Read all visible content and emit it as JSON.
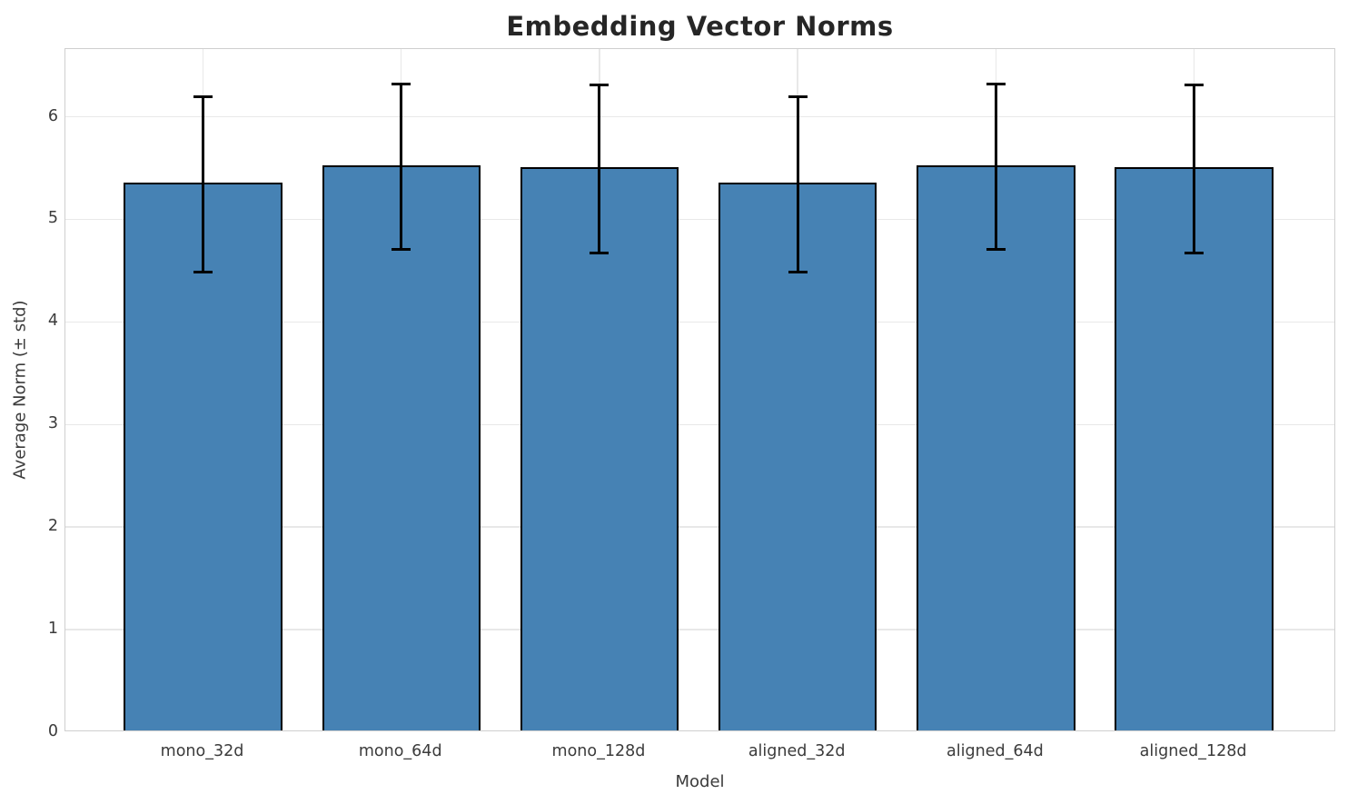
{
  "chart_data": {
    "type": "bar",
    "title": "Embedding Vector Norms",
    "xlabel": "Model",
    "ylabel": "Average Norm (± std)",
    "categories": [
      "mono_32d",
      "mono_64d",
      "mono_128d",
      "aligned_32d",
      "aligned_64d",
      "aligned_128d"
    ],
    "series": [
      {
        "name": "Average Norm",
        "values": [
          5.34,
          5.51,
          5.49,
          5.34,
          5.51,
          5.49
        ],
        "errors_std": [
          0.87,
          0.82,
          0.83,
          0.87,
          0.82,
          0.83
        ]
      }
    ],
    "yticks": [
      0,
      1,
      2,
      3,
      4,
      5,
      6
    ],
    "ylim": [
      0,
      6.66
    ],
    "grid": true,
    "legend": "none",
    "colors": {
      "bar_fill": "#4682b4",
      "bar_edge": "#000000",
      "error_bar": "#000000",
      "gridline": "#e8e8e8",
      "spine": "#cfcfcf",
      "title_text": "#262626",
      "tick_text": "#3b3b3b",
      "background": "#ffffff"
    }
  }
}
